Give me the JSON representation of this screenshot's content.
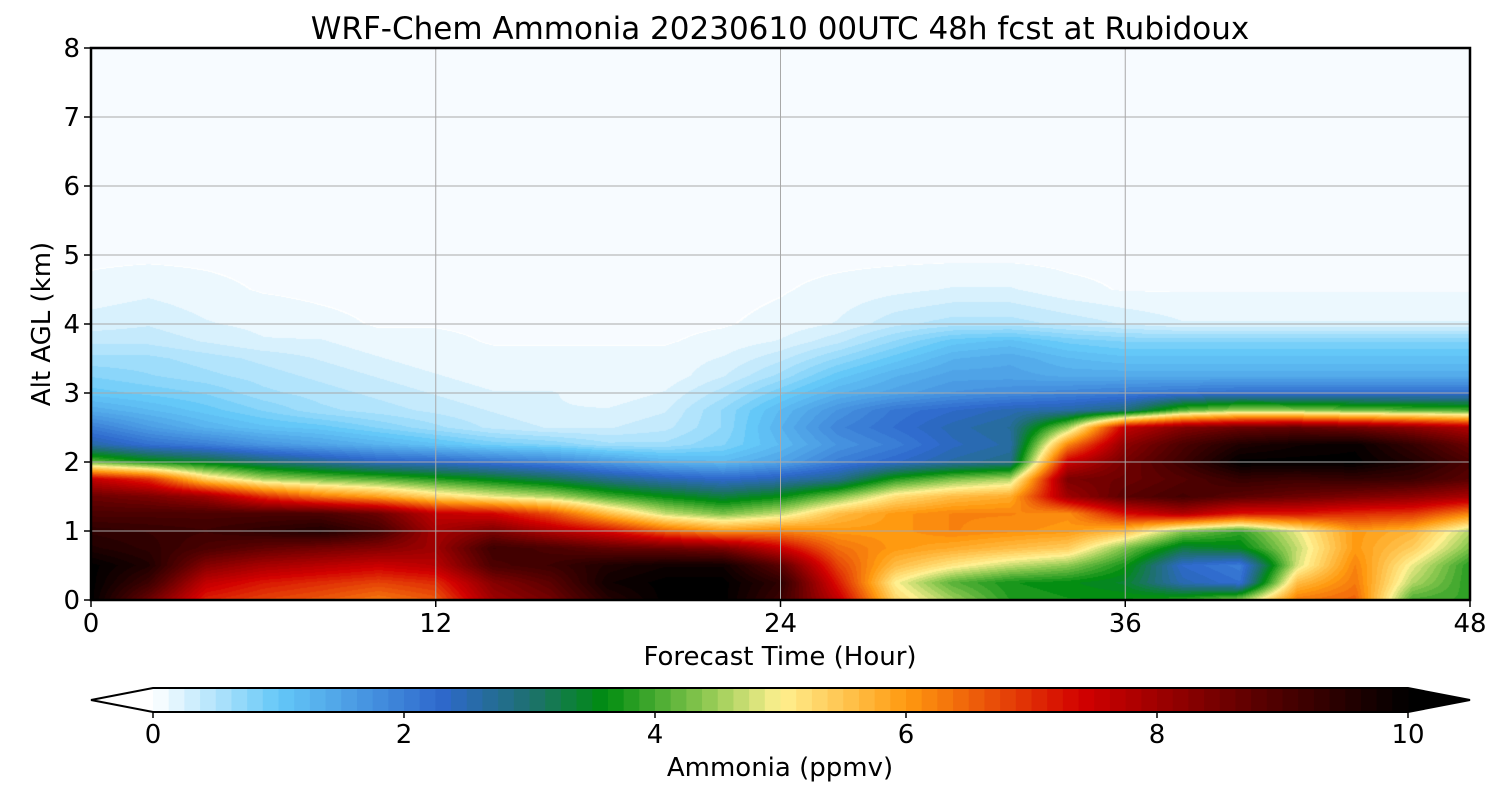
{
  "chart_data": {
    "type": "heatmap",
    "title": "WRF-Chem Ammonia  20230610 00UTC 48h fcst at Rubidoux",
    "xlabel": "Forecast Time (Hour)",
    "ylabel": "Alt AGL (km)",
    "xlim": [
      0,
      48
    ],
    "ylim": [
      0,
      8
    ],
    "x_ticks": [
      0,
      12,
      24,
      36,
      48
    ],
    "y_ticks": [
      0,
      1,
      2,
      3,
      4,
      5,
      6,
      7,
      8
    ],
    "grid": true,
    "colorbar": {
      "label": "Ammonia  (ppmv)",
      "min": 0,
      "max": 10,
      "ticks": [
        0,
        2,
        4,
        6,
        8,
        10
      ],
      "extend": "both",
      "orientation": "horizontal",
      "stops": [
        {
          "v": 0,
          "c": "#ffffff"
        },
        {
          "v": 1,
          "c": "#64c8f8"
        },
        {
          "v": 2.3,
          "c": "#2e68cc"
        },
        {
          "v": 3,
          "c": "#1e7070"
        },
        {
          "v": 3.6,
          "c": "#008c10"
        },
        {
          "v": 4.4,
          "c": "#8cc850"
        },
        {
          "v": 5,
          "c": "#fff090"
        },
        {
          "v": 6,
          "c": "#ff9a10"
        },
        {
          "v": 7.4,
          "c": "#d20000"
        },
        {
          "v": 8.8,
          "c": "#5a0000"
        },
        {
          "v": 10,
          "c": "#000000"
        }
      ]
    },
    "x": [
      0,
      2,
      4,
      6,
      8,
      10,
      12,
      14,
      16,
      18,
      20,
      22,
      24,
      26,
      28,
      30,
      32,
      34,
      36,
      38,
      40,
      42,
      44,
      46,
      48
    ],
    "y": [
      0,
      0.25,
      0.5,
      0.75,
      1,
      1.25,
      1.5,
      1.75,
      2,
      2.25,
      2.5,
      2.75,
      3,
      3.25,
      3.5,
      3.75,
      4,
      4.5,
      5,
      6,
      7,
      8
    ],
    "z": [
      [
        10.0,
        8.6,
        7.1,
        6.8,
        6.6,
        6.3,
        6.6,
        8.0,
        8.5,
        9.5,
        10.0,
        10.0,
        9.2,
        7.6,
        5.3,
        4.5,
        3.8,
        3.7,
        3.7,
        3.9,
        4.4,
        6.3,
        6.5,
        4.0,
        3.9
      ],
      [
        10.0,
        9.2,
        7.6,
        7.2,
        7.0,
        6.8,
        7.0,
        8.3,
        8.8,
        9.8,
        10.0,
        10.0,
        9.4,
        7.2,
        5.0,
        4.1,
        3.7,
        3.6,
        3.4,
        2.5,
        2.2,
        5.6,
        6.3,
        4.6,
        3.8
      ],
      [
        10.0,
        9.6,
        8.3,
        7.9,
        7.7,
        7.5,
        7.7,
        9.0,
        9.2,
        9.6,
        9.8,
        9.8,
        8.8,
        6.8,
        5.6,
        5.1,
        4.7,
        4.4,
        3.7,
        2.3,
        2.0,
        4.8,
        6.2,
        4.9,
        3.8
      ],
      [
        9.6,
        9.4,
        9.0,
        8.7,
        8.5,
        8.3,
        8.0,
        9.2,
        9.0,
        8.7,
        8.6,
        8.4,
        7.5,
        6.4,
        6.0,
        5.8,
        5.6,
        5.4,
        4.3,
        3.3,
        3.5,
        4.7,
        6.0,
        5.4,
        4.3
      ],
      [
        9.4,
        9.3,
        9.2,
        9.4,
        9.6,
        9.1,
        7.9,
        8.4,
        7.8,
        7.3,
        6.5,
        6.0,
        6.2,
        6.0,
        6.0,
        6.2,
        6.1,
        6.0,
        5.6,
        4.4,
        3.9,
        4.9,
        6.0,
        5.7,
        4.6
      ],
      [
        9.0,
        9.0,
        9.0,
        9.0,
        9.0,
        8.6,
        7.6,
        7.4,
        6.7,
        5.6,
        4.7,
        4.3,
        4.7,
        5.6,
        6.0,
        6.2,
        6.2,
        6.1,
        7.3,
        7.8,
        7.2,
        7.2,
        7.0,
        6.9,
        6.2
      ],
      [
        8.6,
        8.4,
        8.0,
        7.0,
        6.3,
        5.9,
        5.3,
        4.9,
        4.6,
        4.0,
        3.6,
        3.3,
        3.6,
        4.3,
        5.2,
        5.6,
        5.8,
        8.0,
        8.8,
        9.1,
        8.8,
        8.6,
        8.4,
        8.2,
        7.9
      ],
      [
        7.6,
        7.0,
        5.4,
        4.6,
        4.3,
        4.1,
        3.8,
        3.5,
        3.2,
        2.8,
        2.5,
        2.3,
        2.5,
        2.8,
        3.8,
        4.3,
        4.6,
        8.4,
        8.6,
        8.9,
        9.3,
        9.2,
        9.3,
        9.2,
        8.8
      ],
      [
        4.2,
        3.7,
        3.4,
        3.0,
        2.7,
        2.4,
        2.3,
        2.1,
        1.9,
        1.6,
        1.3,
        1.2,
        1.5,
        2.0,
        2.3,
        2.6,
        2.8,
        7.5,
        8.5,
        9.2,
        10.0,
        10.0,
        10.0,
        9.6,
        9.0
      ],
      [
        2.6,
        2.2,
        2.0,
        1.7,
        1.5,
        1.3,
        1.1,
        0.9,
        0.8,
        0.6,
        0.6,
        0.8,
        1.2,
        1.7,
        2.0,
        2.4,
        2.6,
        6.2,
        8.2,
        9.0,
        9.6,
        9.8,
        9.9,
        9.3,
        8.6
      ],
      [
        2.0,
        1.6,
        1.3,
        1.1,
        1.0,
        0.8,
        0.6,
        0.4,
        0.3,
        0.3,
        0.4,
        0.7,
        1.3,
        1.9,
        2.2,
        2.5,
        2.7,
        4.5,
        7.6,
        8.3,
        8.6,
        8.7,
        8.5,
        8.2,
        7.8
      ],
      [
        1.4,
        1.2,
        1.0,
        0.8,
        0.6,
        0.5,
        0.4,
        0.3,
        0.2,
        0.2,
        0.3,
        0.7,
        1.2,
        1.7,
        2.1,
        2.3,
        2.5,
        2.6,
        2.9,
        4.1,
        4.5,
        4.4,
        4.2,
        4.1,
        4.0
      ],
      [
        1.0,
        0.9,
        0.8,
        0.6,
        0.5,
        0.4,
        0.3,
        0.2,
        0.2,
        0.1,
        0.2,
        0.5,
        0.9,
        1.3,
        1.5,
        1.7,
        1.8,
        1.9,
        2.0,
        2.1,
        2.2,
        2.2,
        2.2,
        2.2,
        2.2
      ],
      [
        0.8,
        0.7,
        0.6,
        0.5,
        0.4,
        0.3,
        0.2,
        0.1,
        0.1,
        0.1,
        0.1,
        0.3,
        0.6,
        1.0,
        1.3,
        1.5,
        1.5,
        1.4,
        1.4,
        1.4,
        1.4,
        1.4,
        1.4,
        1.4,
        1.4
      ],
      [
        0.6,
        0.6,
        0.5,
        0.4,
        0.3,
        0.2,
        0.1,
        0.1,
        0.1,
        0.1,
        0.1,
        0.2,
        0.4,
        0.7,
        1.0,
        1.3,
        1.4,
        1.2,
        1.1,
        1.1,
        1.1,
        1.1,
        1.1,
        1.1,
        1.1
      ],
      [
        0.4,
        0.4,
        0.3,
        0.2,
        0.2,
        0.1,
        0.1,
        0.05,
        0.05,
        0.05,
        0.05,
        0.1,
        0.2,
        0.4,
        0.7,
        1.0,
        1.1,
        0.9,
        0.8,
        0.8,
        0.8,
        0.8,
        0.8,
        0.8,
        0.8
      ],
      [
        0.25,
        0.3,
        0.2,
        0.15,
        0.1,
        0.05,
        0.05,
        0.03,
        0.03,
        0.03,
        0.03,
        0.05,
        0.1,
        0.2,
        0.4,
        0.5,
        0.5,
        0.4,
        0.3,
        0.2,
        0.2,
        0.2,
        0.2,
        0.2,
        0.2
      ],
      [
        0.1,
        0.15,
        0.1,
        0.05,
        0.03,
        0.02,
        0.02,
        0.02,
        0.02,
        0.02,
        0.02,
        0.02,
        0.05,
        0.1,
        0.15,
        0.2,
        0.2,
        0.1,
        0.05,
        0.05,
        0.05,
        0.05,
        0.05,
        0.05,
        0.05
      ],
      [
        0.03,
        0.03,
        0.03,
        0.02,
        0.02,
        0.02,
        0.02,
        0.02,
        0.02,
        0.02,
        0.02,
        0.02,
        0.02,
        0.02,
        0.02,
        0.02,
        0.02,
        0.02,
        0.02,
        0.02,
        0.02,
        0.02,
        0.02,
        0.02,
        0.02
      ],
      [
        0.02,
        0.02,
        0.02,
        0.02,
        0.02,
        0.02,
        0.02,
        0.02,
        0.02,
        0.02,
        0.02,
        0.02,
        0.02,
        0.02,
        0.02,
        0.02,
        0.02,
        0.02,
        0.02,
        0.02,
        0.02,
        0.02,
        0.02,
        0.02,
        0.02
      ],
      [
        0.02,
        0.02,
        0.02,
        0.02,
        0.02,
        0.02,
        0.02,
        0.02,
        0.02,
        0.02,
        0.02,
        0.02,
        0.02,
        0.02,
        0.02,
        0.02,
        0.02,
        0.02,
        0.02,
        0.02,
        0.02,
        0.02,
        0.02,
        0.02,
        0.02
      ],
      [
        0.02,
        0.02,
        0.02,
        0.02,
        0.02,
        0.02,
        0.02,
        0.02,
        0.02,
        0.02,
        0.02,
        0.02,
        0.02,
        0.02,
        0.02,
        0.02,
        0.02,
        0.02,
        0.02,
        0.02,
        0.02,
        0.02,
        0.02,
        0.02,
        0.02
      ]
    ]
  }
}
